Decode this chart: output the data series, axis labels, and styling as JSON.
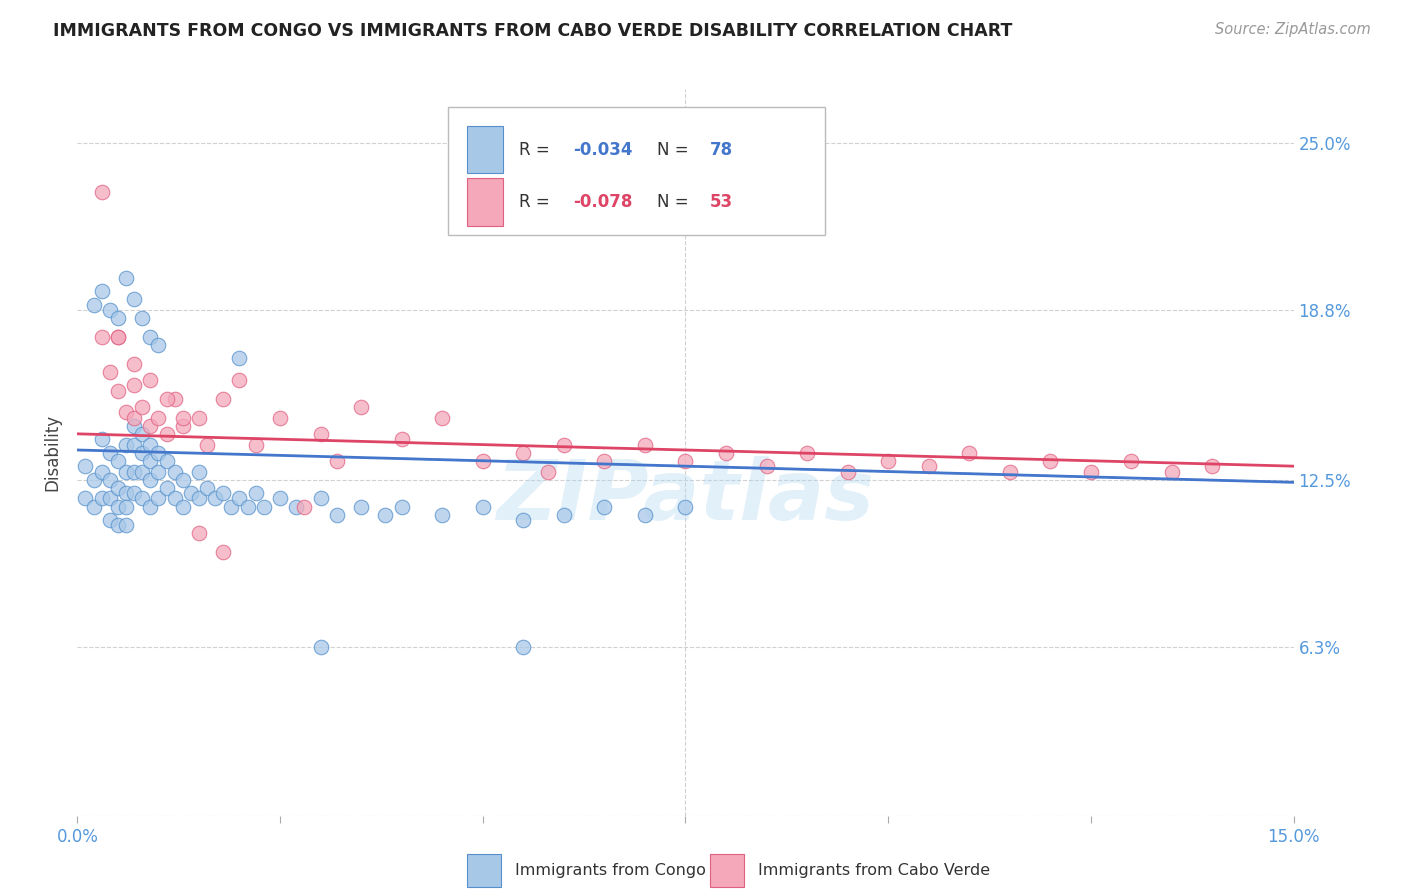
{
  "title": "IMMIGRANTS FROM CONGO VS IMMIGRANTS FROM CABO VERDE DISABILITY CORRELATION CHART",
  "source": "Source: ZipAtlas.com",
  "ylabel": "Disability",
  "ytick_labels": [
    "",
    "6.3%",
    "12.5%",
    "18.8%",
    "25.0%"
  ],
  "ytick_values": [
    0.0,
    0.063,
    0.125,
    0.188,
    0.25
  ],
  "xlim": [
    0.0,
    0.15
  ],
  "ylim": [
    0.0,
    0.27
  ],
  "congo_color": "#a8c8e8",
  "cabo_verde_color": "#f4a8ba",
  "congo_edge_color": "#5590cc",
  "cabo_verde_edge_color": "#e06080",
  "congo_line_color": "#4477cc",
  "cabo_verde_line_color": "#dd4466",
  "axis_label_color": "#5599dd",
  "title_color": "#222222",
  "source_color": "#999999",
  "grid_color": "#cccccc",
  "watermark_color": "#aad4f0",
  "legend_label_congo": "Immigrants from Congo",
  "legend_label_cabo": "Immigrants from Cabo Verde",
  "congo_R": "-0.034",
  "congo_N": "78",
  "cabo_verde_R": "-0.078",
  "cabo_verde_N": "53",
  "congo_x": [
    0.001,
    0.001,
    0.002,
    0.002,
    0.003,
    0.003,
    0.003,
    0.004,
    0.004,
    0.004,
    0.004,
    0.005,
    0.005,
    0.005,
    0.005,
    0.006,
    0.006,
    0.006,
    0.006,
    0.006,
    0.007,
    0.007,
    0.007,
    0.007,
    0.008,
    0.008,
    0.008,
    0.008,
    0.009,
    0.009,
    0.009,
    0.009,
    0.01,
    0.01,
    0.01,
    0.011,
    0.011,
    0.012,
    0.012,
    0.013,
    0.013,
    0.014,
    0.015,
    0.015,
    0.016,
    0.017,
    0.018,
    0.019,
    0.02,
    0.021,
    0.022,
    0.023,
    0.025,
    0.027,
    0.03,
    0.032,
    0.035,
    0.038,
    0.04,
    0.045,
    0.05,
    0.055,
    0.06,
    0.065,
    0.07,
    0.075,
    0.002,
    0.003,
    0.004,
    0.005,
    0.006,
    0.007,
    0.008,
    0.009,
    0.01,
    0.02,
    0.03,
    0.055
  ],
  "congo_y": [
    0.13,
    0.118,
    0.125,
    0.115,
    0.14,
    0.128,
    0.118,
    0.135,
    0.125,
    0.118,
    0.11,
    0.132,
    0.122,
    0.115,
    0.108,
    0.138,
    0.128,
    0.12,
    0.115,
    0.108,
    0.145,
    0.138,
    0.128,
    0.12,
    0.142,
    0.135,
    0.128,
    0.118,
    0.138,
    0.132,
    0.125,
    0.115,
    0.135,
    0.128,
    0.118,
    0.132,
    0.122,
    0.128,
    0.118,
    0.125,
    0.115,
    0.12,
    0.128,
    0.118,
    0.122,
    0.118,
    0.12,
    0.115,
    0.118,
    0.115,
    0.12,
    0.115,
    0.118,
    0.115,
    0.118,
    0.112,
    0.115,
    0.112,
    0.115,
    0.112,
    0.115,
    0.11,
    0.112,
    0.115,
    0.112,
    0.115,
    0.19,
    0.195,
    0.188,
    0.185,
    0.2,
    0.192,
    0.185,
    0.178,
    0.175,
    0.17,
    0.063,
    0.063
  ],
  "cabo_verde_x": [
    0.003,
    0.004,
    0.005,
    0.005,
    0.006,
    0.007,
    0.007,
    0.008,
    0.009,
    0.01,
    0.011,
    0.012,
    0.013,
    0.015,
    0.016,
    0.018,
    0.02,
    0.022,
    0.025,
    0.028,
    0.03,
    0.032,
    0.035,
    0.04,
    0.045,
    0.05,
    0.055,
    0.058,
    0.06,
    0.065,
    0.07,
    0.075,
    0.08,
    0.085,
    0.09,
    0.095,
    0.1,
    0.105,
    0.11,
    0.115,
    0.12,
    0.125,
    0.13,
    0.135,
    0.14,
    0.003,
    0.005,
    0.007,
    0.009,
    0.011,
    0.013,
    0.015,
    0.018
  ],
  "cabo_verde_y": [
    0.232,
    0.165,
    0.178,
    0.158,
    0.15,
    0.16,
    0.148,
    0.152,
    0.145,
    0.148,
    0.142,
    0.155,
    0.145,
    0.148,
    0.138,
    0.155,
    0.162,
    0.138,
    0.148,
    0.115,
    0.142,
    0.132,
    0.152,
    0.14,
    0.148,
    0.132,
    0.135,
    0.128,
    0.138,
    0.132,
    0.138,
    0.132,
    0.135,
    0.13,
    0.135,
    0.128,
    0.132,
    0.13,
    0.135,
    0.128,
    0.132,
    0.128,
    0.132,
    0.128,
    0.13,
    0.178,
    0.178,
    0.168,
    0.162,
    0.155,
    0.148,
    0.105,
    0.098
  ]
}
